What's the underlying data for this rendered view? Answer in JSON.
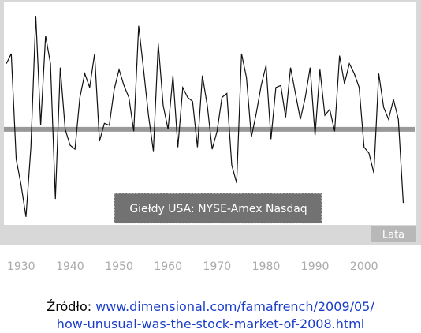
{
  "chart_data": {
    "type": "line",
    "annotation": "Giełdy USA: NYSE-Amex Nasdaq",
    "x_label": "Lata",
    "x": [
      1927,
      1928,
      1929,
      1930,
      1931,
      1932,
      1933,
      1934,
      1935,
      1936,
      1937,
      1938,
      1939,
      1940,
      1941,
      1942,
      1943,
      1944,
      1945,
      1946,
      1947,
      1948,
      1949,
      1950,
      1951,
      1952,
      1953,
      1954,
      1955,
      1956,
      1957,
      1958,
      1959,
      1960,
      1961,
      1962,
      1963,
      1964,
      1965,
      1966,
      1967,
      1968,
      1969,
      1970,
      1971,
      1972,
      1973,
      1974,
      1975,
      1976,
      1977,
      1978,
      1979,
      1980,
      1981,
      1982,
      1983,
      1984,
      1985,
      1986,
      1987,
      1988,
      1989,
      1990,
      1991,
      1992,
      1993,
      1994,
      1995,
      1996,
      1997,
      1998,
      1999,
      2000,
      2001,
      2002,
      2003,
      2004,
      2005,
      2006,
      2007,
      2008
    ],
    "series": [
      {
        "color": "#111111",
        "values": [
          33,
          38,
          -15,
          -28,
          -44,
          -9,
          57,
          2,
          47,
          33,
          -35,
          31,
          0,
          -8,
          -10,
          16,
          28,
          21,
          38,
          -6,
          3,
          2,
          20,
          30,
          22,
          16,
          -1,
          52,
          30,
          7,
          -11,
          43,
          12,
          0,
          27,
          -9,
          21,
          16,
          14,
          -9,
          27,
          12,
          -10,
          -1,
          16,
          18,
          -18,
          -27,
          38,
          26,
          -4,
          8,
          22,
          32,
          -5,
          21,
          22,
          6,
          31,
          18,
          5,
          16,
          31,
          -3,
          30,
          7,
          10,
          -1,
          37,
          23,
          33,
          28,
          21,
          -9,
          -12,
          -22,
          28,
          11,
          5,
          15,
          5,
          -37
        ]
      }
    ],
    "xlim": [
      1926.5,
      2010.5
    ],
    "ylim": [
      -54,
      63
    ],
    "xticks": [
      1930,
      1940,
      1950,
      1960,
      1970,
      1980,
      1990,
      2000
    ]
  },
  "source": {
    "label": "Źródło: ",
    "link_lines": [
      "www.dimensional.com/famafrench/2009/05/",
      "how-unusual-was-the-stock-market-of-2008.html"
    ]
  }
}
